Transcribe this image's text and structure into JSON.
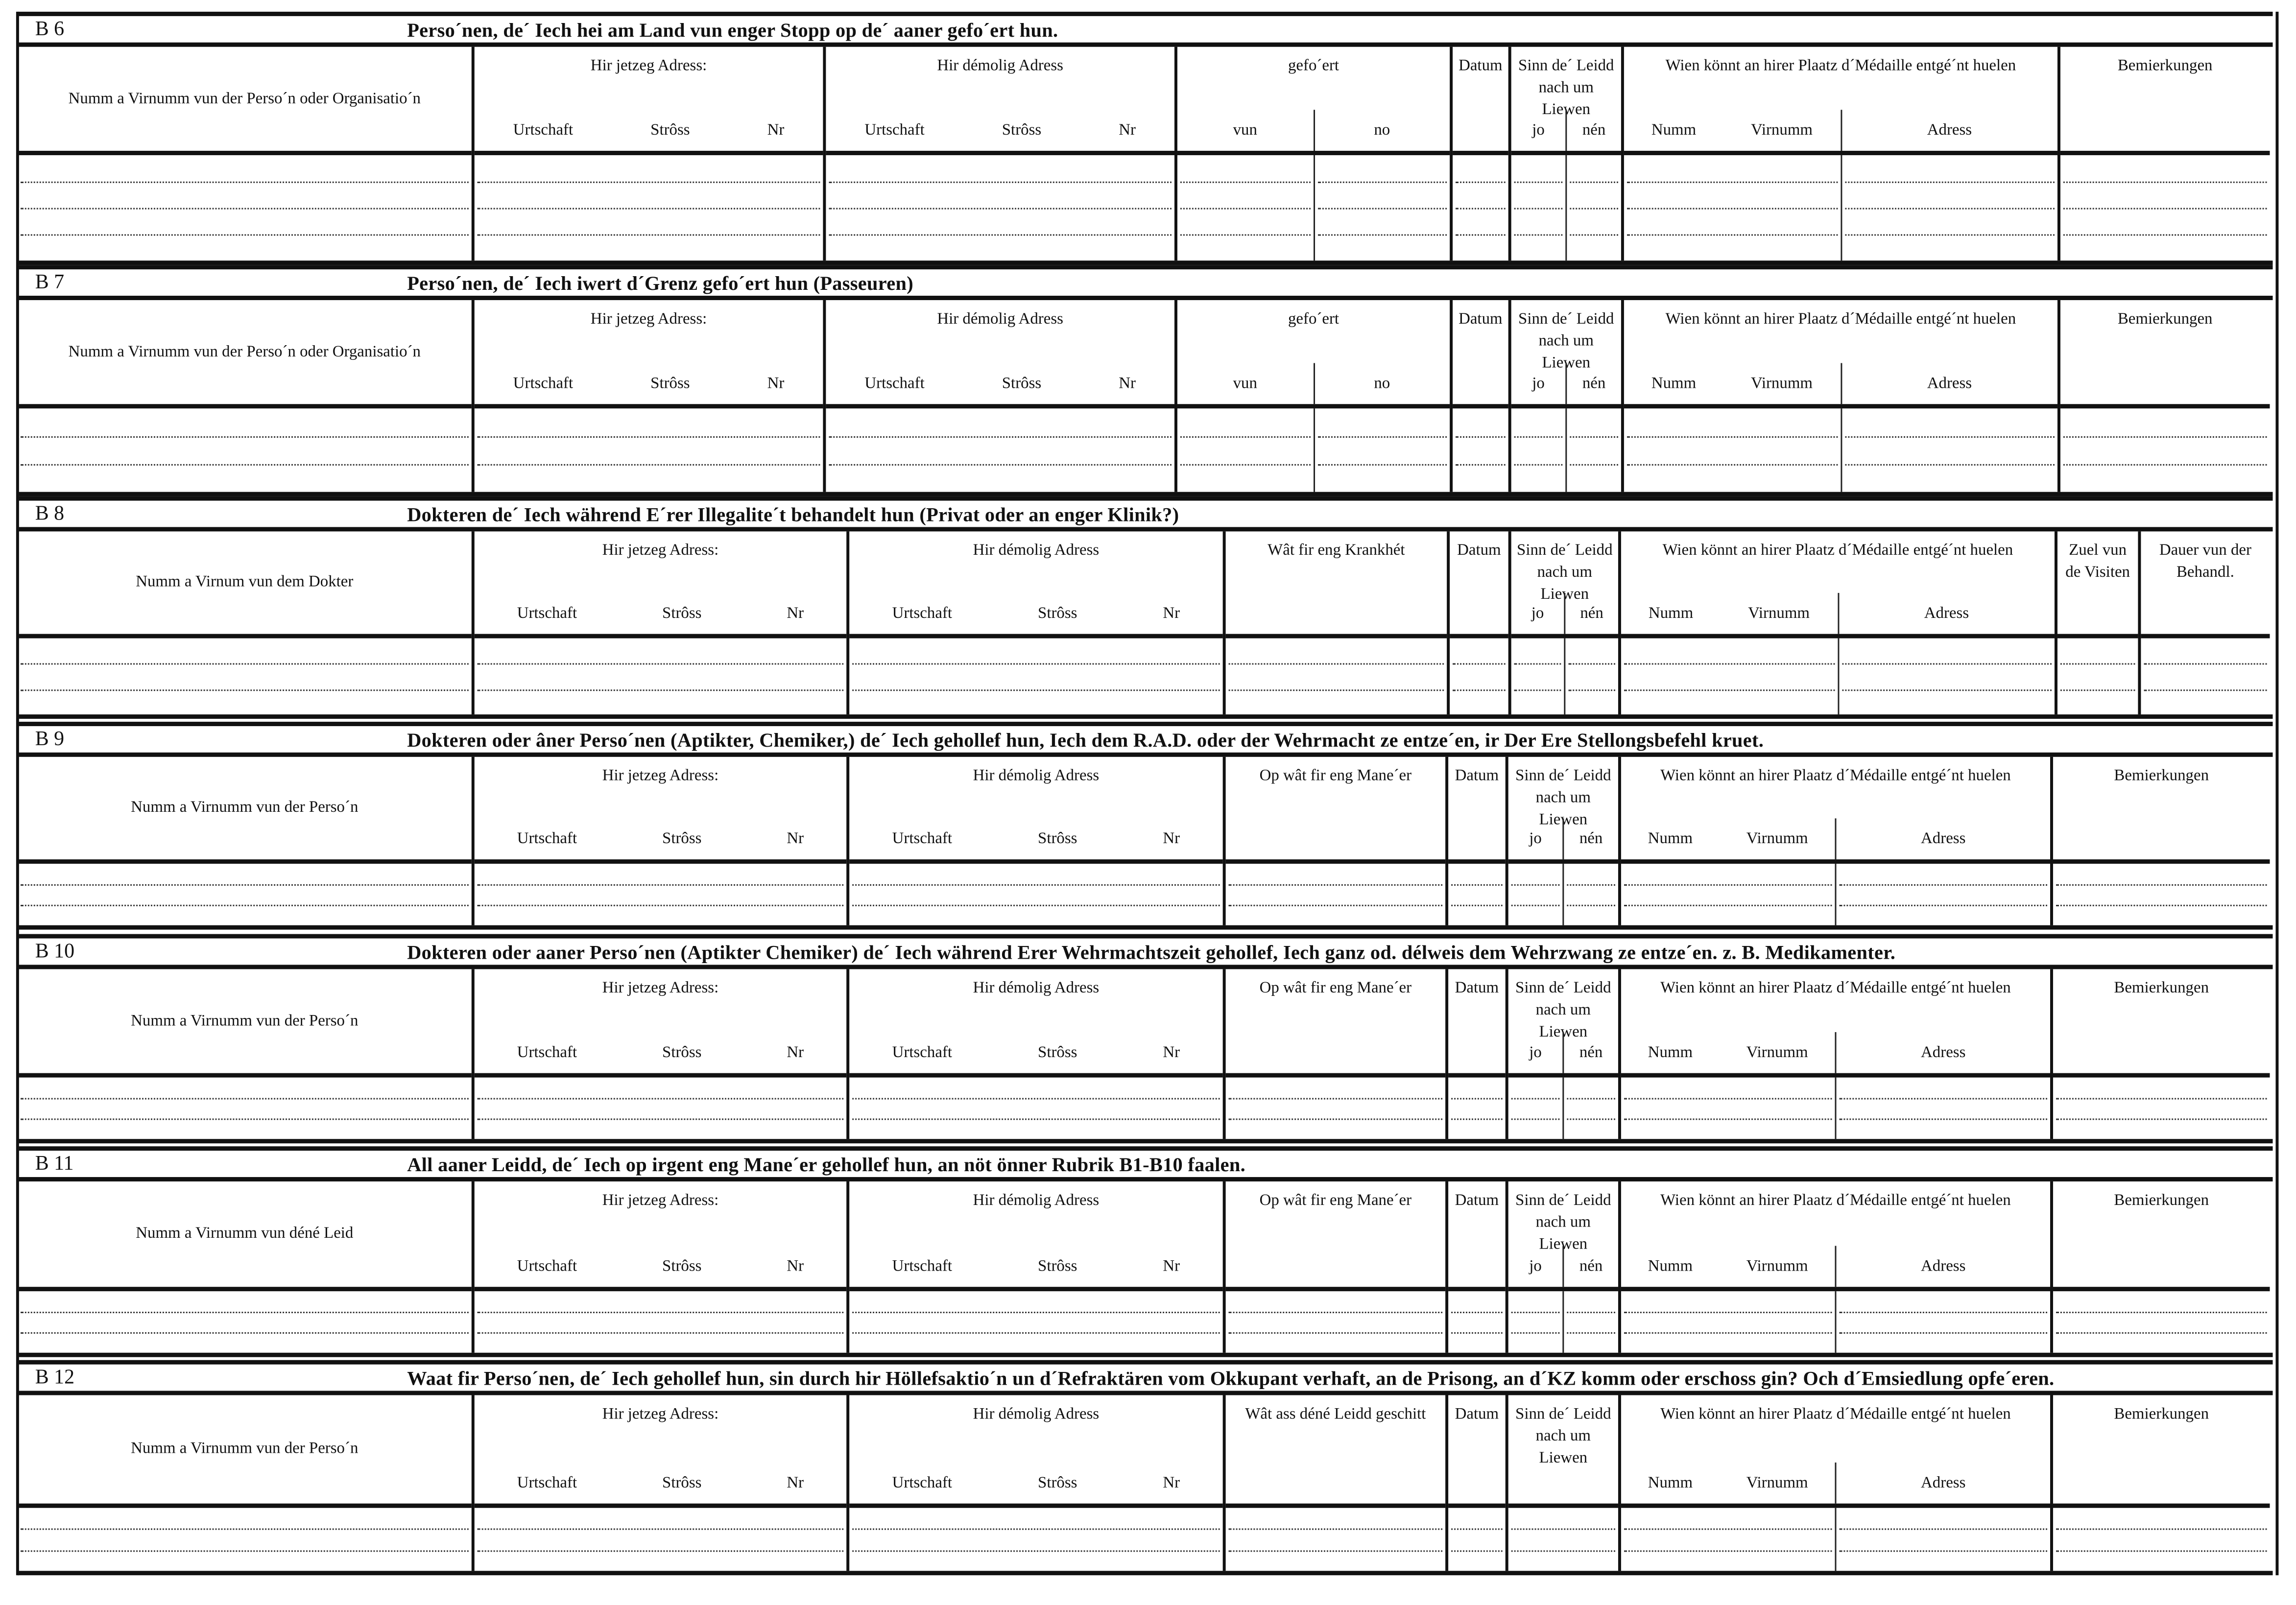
{
  "sections": [
    {
      "code": "B 6",
      "title": "Perso´nen, de´ Iech hei am Land vun enger Stopp  op de´ aaner gefo´ert hun.",
      "variant": "a",
      "rows": 3,
      "columns": [
        {
          "label": "Numm a Virnumm vun der Perso´n oder Organisatio´n"
        },
        {
          "label": "Hir jetzeg Adress:",
          "subs": [
            [
              "Urtschaft",
              "Strôss",
              "Nr"
            ]
          ]
        },
        {
          "label": "Hir démolig Adress",
          "subs": [
            [
              "Urtschaft",
              "Strôss",
              "Nr"
            ]
          ]
        },
        {
          "label": "gefo´ert",
          "subs": [
            [
              "vun"
            ],
            [
              "no"
            ]
          ]
        },
        {
          "label": "Datum"
        },
        {
          "label": "Sinn de´ Leidd nach um Liewen",
          "subs": [
            [
              "jo"
            ],
            [
              "nén"
            ]
          ]
        },
        {
          "label": "Wien könnt an hirer Plaatz d´Médaille entgé´nt huelen",
          "subs": [
            [
              "Numm",
              "Virnumm"
            ],
            [
              "Adress"
            ]
          ]
        },
        {
          "label": "Bemierkungen"
        }
      ]
    },
    {
      "code": "B 7",
      "title": "Perso´nen, de´ Iech iwert d´Grenz gefo´ert hun (Passeuren)",
      "variant": "a",
      "rows": 2,
      "columns": [
        {
          "label": "Numm a Virnumm vun der Perso´n oder Organisatio´n"
        },
        {
          "label": "Hir jetzeg Adress:",
          "subs": [
            [
              "Urtschaft",
              "Strôss",
              "Nr"
            ]
          ]
        },
        {
          "label": "Hir démolig Adress",
          "subs": [
            [
              "Urtschaft",
              "Strôss",
              "Nr"
            ]
          ]
        },
        {
          "label": "gefo´ert",
          "subs": [
            [
              "vun"
            ],
            [
              "no"
            ]
          ]
        },
        {
          "label": "Datum"
        },
        {
          "label": "Sinn de´ Leidd nach um Liewen",
          "subs": [
            [
              "jo"
            ],
            [
              "nén"
            ]
          ]
        },
        {
          "label": "Wien könnt an hirer Plaatz d´Médaille entgé´nt huelen",
          "subs": [
            [
              "Numm",
              "Virnumm"
            ],
            [
              "Adress"
            ]
          ]
        },
        {
          "label": "Bemierkungen"
        }
      ]
    },
    {
      "code": "B 8",
      "title": "Dokteren de´ Iech während E´rer Illegalite´t behandelt hun (Privat oder an enger Klinik?)",
      "variant": "b",
      "rows": 2,
      "columns": [
        {
          "label": "Numm a Virnum vun dem Dokter"
        },
        {
          "label": "Hir jetzeg Adress:",
          "subs": [
            [
              "Urtschaft",
              "Strôss",
              "Nr"
            ]
          ]
        },
        {
          "label": "Hir démolig Adress",
          "subs": [
            [
              "Urtschaft",
              "Strôss",
              "Nr"
            ]
          ]
        },
        {
          "label": "Wât fir eng Krankhét"
        },
        {
          "label": "Datum"
        },
        {
          "label": "Sinn de´ Leidd nach um Liewen",
          "subs": [
            [
              "jo"
            ],
            [
              "nén"
            ]
          ]
        },
        {
          "label": "Wien könnt an hirer Plaatz d´Médaille entgé´nt huelen",
          "subs": [
            [
              "Numm",
              "Virnumm"
            ],
            [
              "Adress"
            ]
          ]
        },
        {
          "label": "Zuel vun de Visiten"
        },
        {
          "label": "Dauer vun der Behandl."
        }
      ]
    },
    {
      "code": "B 9",
      "title": "Dokteren oder âner Perso´nen (Aptikter, Chemiker,) de´ Iech gehollef hun, Iech dem R.A.D. oder der Wehrmacht ze entze´en, ir Der Ere Stellongsbefehl kruet.",
      "variant": "c",
      "rows": 2,
      "columns": [
        {
          "label": "Numm a Virnumm vun der Perso´n"
        },
        {
          "label": "Hir jetzeg Adress:",
          "subs": [
            [
              "Urtschaft",
              "Strôss",
              "Nr"
            ]
          ]
        },
        {
          "label": "Hir démolig Adress",
          "subs": [
            [
              "Urtschaft",
              "Strôss",
              "Nr"
            ]
          ]
        },
        {
          "label": "Op wât fir eng Mane´er"
        },
        {
          "label": "Datum"
        },
        {
          "label": "Sinn de´ Leidd nach um Liewen",
          "subs": [
            [
              "jo"
            ],
            [
              "nén"
            ]
          ]
        },
        {
          "label": "Wien könnt an hirer Plaatz d´Médaille entgé´nt huelen",
          "subs": [
            [
              "Numm",
              "Virnumm"
            ],
            [
              "Adress"
            ]
          ]
        },
        {
          "label": "Bemierkungen"
        }
      ]
    },
    {
      "code": "B 10",
      "title": "Dokteren oder aaner Perso´nen (Aptikter Chemiker) de´ Iech während Erer Wehrmachtszeit gehollef, Iech ganz od. délweis dem Wehrzwang ze entze´en. z. B. Medikamenter.",
      "variant": "c",
      "rows": 2,
      "columns": [
        {
          "label": "Numm a Virnumm vun der Perso´n"
        },
        {
          "label": "Hir jetzeg Adress:",
          "subs": [
            [
              "Urtschaft",
              "Strôss",
              "Nr"
            ]
          ]
        },
        {
          "label": "Hir démolig Adress",
          "subs": [
            [
              "Urtschaft",
              "Strôss",
              "Nr"
            ]
          ]
        },
        {
          "label": "Op wât fir eng Mane´er"
        },
        {
          "label": "Datum"
        },
        {
          "label": "Sinn de´ Leidd nach um Liewen",
          "subs": [
            [
              "jo"
            ],
            [
              "nén"
            ]
          ]
        },
        {
          "label": "Wien könnt an hirer Plaatz d´Médaille entgé´nt huelen",
          "subs": [
            [
              "Numm",
              "Virnumm"
            ],
            [
              "Adress"
            ]
          ]
        },
        {
          "label": "Bemierkungen"
        }
      ]
    },
    {
      "code": "B 11",
      "title": "All aaner Leidd, de´ Iech op irgent eng Mane´er gehollef hun, an nöt önner Rubrik B1-B10 faalen.",
      "variant": "c",
      "rows": 2,
      "columns": [
        {
          "label": "Numm a Virnumm vun déné Leid"
        },
        {
          "label": "Hir jetzeg Adress:",
          "subs": [
            [
              "Urtschaft",
              "Strôss",
              "Nr"
            ]
          ]
        },
        {
          "label": "Hir démolig Adress",
          "subs": [
            [
              "Urtschaft",
              "Strôss",
              "Nr"
            ]
          ]
        },
        {
          "label": "Op wât fir eng Mane´er"
        },
        {
          "label": "Datum"
        },
        {
          "label": "Sinn de´ Leidd nach um Liewen",
          "subs": [
            [
              "jo"
            ],
            [
              "nén"
            ]
          ]
        },
        {
          "label": "Wien könnt an hirer Plaatz d´Médaille entgé´nt huelen",
          "subs": [
            [
              "Numm",
              "Virnumm"
            ],
            [
              "Adress"
            ]
          ]
        },
        {
          "label": "Bemierkungen"
        }
      ]
    },
    {
      "code": "B 12",
      "title": "Waat fir Perso´nen, de´ Iech gehollef hun, sin durch hir Höllefsaktio´n un d´Refraktären vom Okkupant verhaft, an de Prisong, an d´KZ komm oder  erschoss gin? Och d´Emsiedlung opfe´eren.",
      "variant": "c",
      "rows": 2,
      "columns": [
        {
          "label": "Numm a Virnumm vun der Perso´n"
        },
        {
          "label": "Hir jetzeg Adress:",
          "subs": [
            [
              "Urtschaft",
              "Strôss",
              "Nr"
            ]
          ]
        },
        {
          "label": "Hir démolig Adress",
          "subs": [
            [
              "Urtschaft",
              "Strôss",
              "Nr"
            ]
          ]
        },
        {
          "label": "Wât ass déné Leidd geschitt"
        },
        {
          "label": "Datum"
        },
        {
          "label": "Sinn de´ Leidd nach um Liewen"
        },
        {
          "label": "Wien könnt an hirer Plaatz d´Médaille entgé´nt huelen",
          "subs": [
            [
              "Numm",
              "Virnumm"
            ],
            [
              "Adress"
            ]
          ]
        },
        {
          "label": "Bemierkungen"
        }
      ]
    }
  ]
}
